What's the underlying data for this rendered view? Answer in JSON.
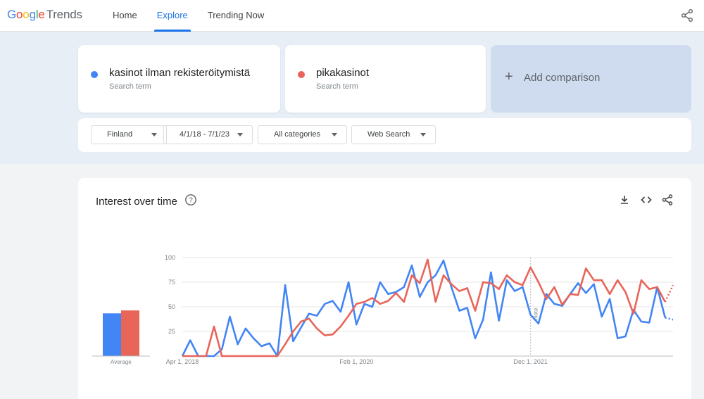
{
  "header": {
    "logo_google": "Google",
    "logo_trends": "Trends",
    "nav": [
      {
        "label": "Home",
        "active": false
      },
      {
        "label": "Explore",
        "active": true
      },
      {
        "label": "Trending Now",
        "active": false
      }
    ]
  },
  "terms": [
    {
      "name": "kasinot ilman rekisteröitymistä",
      "sub": "Search term",
      "color": "#4285f4"
    },
    {
      "name": "pikakasinot",
      "sub": "Search term",
      "color": "#e8655a"
    }
  ],
  "add_comparison": "Add comparison",
  "filters": [
    {
      "label": "Finland"
    },
    {
      "label": "4/1/18 - 7/1/23"
    },
    {
      "label": "All categories"
    },
    {
      "label": "Web Search"
    }
  ],
  "chart": {
    "title": "Interest over time",
    "average_label": "Average"
  },
  "chart_data": {
    "type": "line",
    "y_ticks": [
      "100",
      "75",
      "50",
      "25"
    ],
    "ylim": [
      0,
      100
    ],
    "x_ticks": [
      {
        "label": "Apr 1, 2018",
        "index": 0
      },
      {
        "label": "Feb 1, 2020",
        "index": 22
      },
      {
        "label": "Dec 1, 2021",
        "index": 44
      }
    ],
    "annotation": {
      "label": "Note",
      "index": 44
    },
    "partial_from_index": 61,
    "averages": [
      44,
      47
    ],
    "series": [
      {
        "name": "kasinot ilman rekisteröitymistä",
        "color": "#4285f4",
        "values": [
          0,
          16,
          0,
          0,
          0,
          7,
          40,
          12,
          28,
          18,
          10,
          13,
          0,
          72,
          15,
          29,
          43,
          41,
          53,
          56,
          45,
          75,
          32,
          53,
          50,
          75,
          63,
          65,
          70,
          92,
          60,
          75,
          82,
          97,
          70,
          46,
          49,
          18,
          37,
          85,
          36,
          77,
          66,
          70,
          42,
          33,
          63,
          53,
          51,
          63,
          74,
          64,
          73,
          40,
          58,
          18,
          20,
          47,
          35,
          34,
          70,
          39,
          37
        ]
      },
      {
        "name": "pikakasinot",
        "color": "#e8655a",
        "values": [
          0,
          0,
          0,
          0,
          30,
          0,
          0,
          0,
          0,
          0,
          0,
          0,
          0,
          12,
          25,
          35,
          38,
          28,
          21,
          22,
          30,
          41,
          53,
          55,
          59,
          53,
          56,
          64,
          55,
          82,
          74,
          98,
          55,
          82,
          73,
          66,
          69,
          46,
          75,
          74,
          68,
          82,
          75,
          72,
          90,
          75,
          58,
          70,
          52,
          63,
          62,
          89,
          77,
          77,
          63,
          77,
          65,
          43,
          77,
          68,
          70,
          55,
          72
        ]
      }
    ]
  }
}
